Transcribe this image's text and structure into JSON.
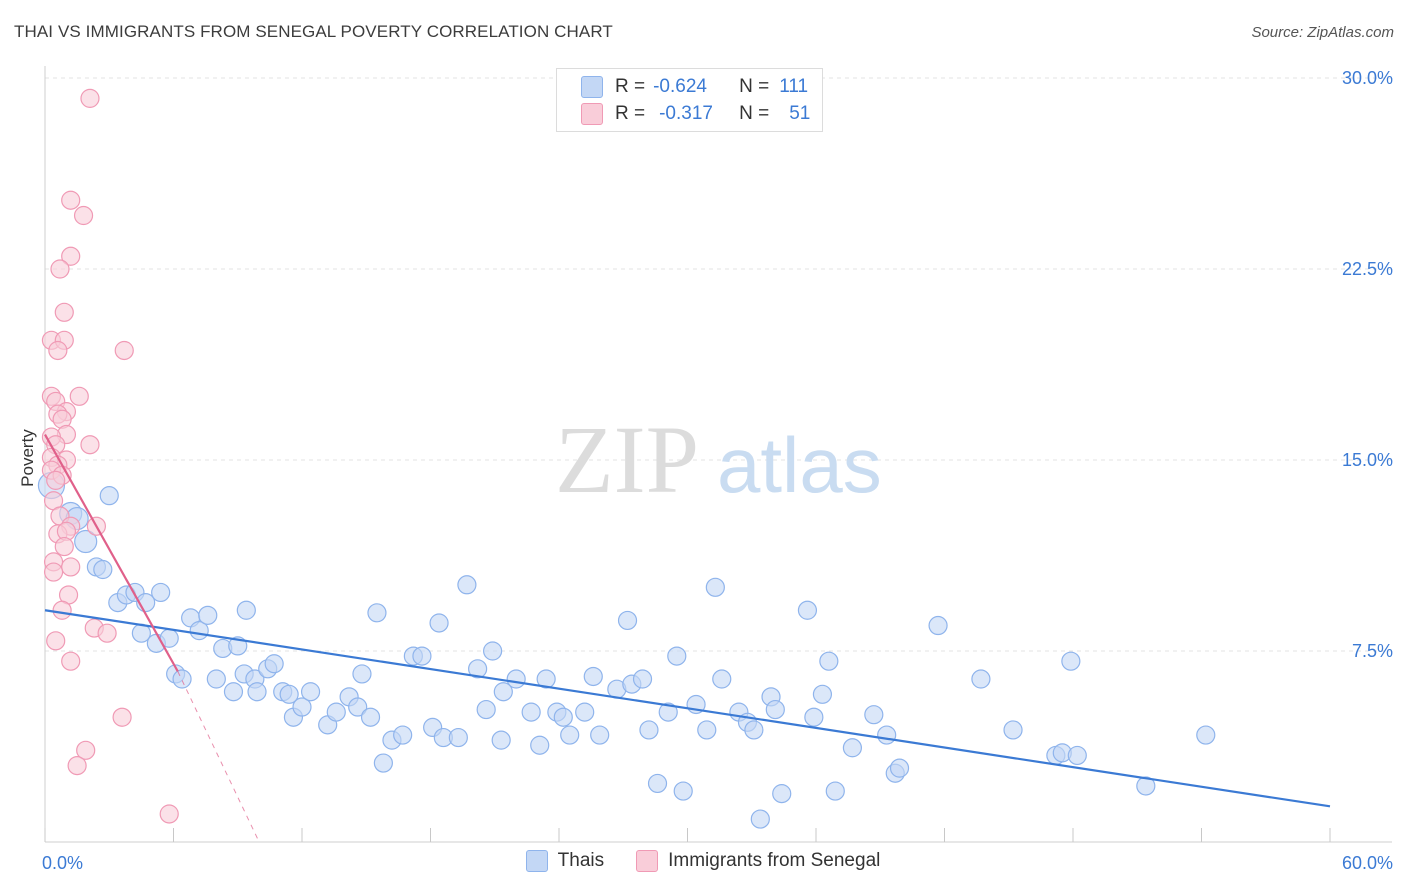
{
  "title": "THAI VS IMMIGRANTS FROM SENEGAL POVERTY CORRELATION CHART",
  "source": "Source: ZipAtlas.com",
  "watermark": {
    "zip": "ZIP",
    "atlas": "atlas"
  },
  "stats": [
    {
      "r_label": "R =",
      "r_value": "-0.624",
      "n_label": "N =",
      "n_value": "111",
      "color": "#8fb4ec",
      "fill": "#c3d7f5"
    },
    {
      "r_label": "R =",
      "r_value": "-0.317",
      "n_label": "N =",
      "n_value": "51",
      "color": "#f09ab5",
      "fill": "#f9cdd9"
    }
  ],
  "legend": [
    {
      "label": "Thais",
      "fill": "#c3d7f5",
      "stroke": "#8fb4ec"
    },
    {
      "label": "Immigrants from Senegal",
      "fill": "#f9cdd9",
      "stroke": "#f09ab5"
    }
  ],
  "chart_data": {
    "type": "scatter",
    "title": "THAI VS IMMIGRANTS FROM SENEGAL POVERTY CORRELATION CHART",
    "xlabel": "",
    "ylabel": "Poverty",
    "xlim": [
      0,
      60
    ],
    "ylim": [
      0,
      30
    ],
    "x_tick_labels": [
      "0.0%",
      "60.0%"
    ],
    "y_ticks": [
      7.5,
      15.0,
      22.5,
      30.0
    ],
    "y_tick_labels": [
      "7.5%",
      "15.0%",
      "22.5%",
      "30.0%"
    ],
    "grid": true,
    "legend_position": "bottom",
    "series": [
      {
        "name": "Thais",
        "color": "#3b7ad4",
        "marker_fill": "#c3d7f5",
        "marker_stroke": "#8fb4ec",
        "trend": {
          "x": [
            0,
            60
          ],
          "y": [
            9.1,
            1.4
          ]
        },
        "points": [
          [
            0.3,
            14.0
          ],
          [
            1.2,
            12.9
          ],
          [
            1.5,
            12.7
          ],
          [
            1.9,
            11.8
          ],
          [
            3.0,
            13.6
          ],
          [
            2.4,
            10.8
          ],
          [
            2.7,
            10.7
          ],
          [
            3.4,
            9.4
          ],
          [
            3.8,
            9.7
          ],
          [
            4.2,
            9.8
          ],
          [
            4.7,
            9.4
          ],
          [
            5.4,
            9.8
          ],
          [
            4.5,
            8.2
          ],
          [
            5.2,
            7.8
          ],
          [
            5.8,
            8.0
          ],
          [
            6.1,
            6.6
          ],
          [
            6.4,
            6.4
          ],
          [
            6.8,
            8.8
          ],
          [
            7.2,
            8.3
          ],
          [
            7.6,
            8.9
          ],
          [
            8.0,
            6.4
          ],
          [
            8.3,
            7.6
          ],
          [
            8.8,
            5.9
          ],
          [
            9.0,
            7.7
          ],
          [
            9.3,
            6.6
          ],
          [
            9.4,
            9.1
          ],
          [
            9.8,
            6.4
          ],
          [
            9.9,
            5.9
          ],
          [
            10.4,
            6.8
          ],
          [
            10.7,
            7.0
          ],
          [
            11.1,
            5.9
          ],
          [
            11.4,
            5.8
          ],
          [
            11.6,
            4.9
          ],
          [
            12.0,
            5.3
          ],
          [
            12.4,
            5.9
          ],
          [
            13.2,
            4.6
          ],
          [
            13.6,
            5.1
          ],
          [
            14.2,
            5.7
          ],
          [
            14.6,
            5.3
          ],
          [
            14.8,
            6.6
          ],
          [
            15.2,
            4.9
          ],
          [
            15.5,
            9.0
          ],
          [
            15.8,
            3.1
          ],
          [
            16.2,
            4.0
          ],
          [
            16.7,
            4.2
          ],
          [
            17.2,
            7.3
          ],
          [
            17.6,
            7.3
          ],
          [
            18.1,
            4.5
          ],
          [
            18.4,
            8.6
          ],
          [
            18.6,
            4.1
          ],
          [
            19.3,
            4.1
          ],
          [
            19.7,
            10.1
          ],
          [
            20.2,
            6.8
          ],
          [
            20.6,
            5.2
          ],
          [
            20.9,
            7.5
          ],
          [
            21.3,
            4.0
          ],
          [
            21.4,
            5.9
          ],
          [
            22.0,
            6.4
          ],
          [
            22.7,
            5.1
          ],
          [
            23.1,
            3.8
          ],
          [
            23.4,
            6.4
          ],
          [
            23.9,
            5.1
          ],
          [
            24.2,
            4.9
          ],
          [
            24.5,
            4.2
          ],
          [
            25.2,
            5.1
          ],
          [
            25.6,
            6.5
          ],
          [
            25.9,
            4.2
          ],
          [
            26.7,
            6.0
          ],
          [
            27.2,
            8.7
          ],
          [
            27.4,
            6.2
          ],
          [
            27.9,
            6.4
          ],
          [
            28.2,
            4.4
          ],
          [
            28.6,
            2.3
          ],
          [
            29.1,
            5.1
          ],
          [
            29.5,
            7.3
          ],
          [
            29.8,
            2.0
          ],
          [
            30.4,
            5.4
          ],
          [
            30.9,
            4.4
          ],
          [
            31.3,
            10.0
          ],
          [
            31.6,
            6.4
          ],
          [
            32.4,
            5.1
          ],
          [
            32.8,
            4.7
          ],
          [
            33.1,
            4.4
          ],
          [
            33.4,
            0.9
          ],
          [
            33.9,
            5.7
          ],
          [
            34.1,
            5.2
          ],
          [
            34.4,
            1.9
          ],
          [
            35.6,
            9.1
          ],
          [
            35.9,
            4.9
          ],
          [
            36.3,
            5.8
          ],
          [
            36.6,
            7.1
          ],
          [
            36.9,
            2.0
          ],
          [
            37.7,
            3.7
          ],
          [
            38.7,
            5.0
          ],
          [
            39.3,
            4.2
          ],
          [
            39.7,
            2.7
          ],
          [
            39.9,
            2.9
          ],
          [
            41.7,
            8.5
          ],
          [
            43.7,
            6.4
          ],
          [
            45.2,
            4.4
          ],
          [
            47.2,
            3.4
          ],
          [
            47.5,
            3.5
          ],
          [
            47.9,
            7.1
          ],
          [
            48.2,
            3.4
          ],
          [
            51.4,
            2.2
          ],
          [
            54.2,
            4.2
          ]
        ]
      },
      {
        "name": "Immigrants from Senegal",
        "color": "#e0608a",
        "marker_fill": "#f9cdd9",
        "marker_stroke": "#f09ab5",
        "trend": {
          "x": [
            0,
            6.2
          ],
          "y": [
            16.0,
            6.7
          ]
        },
        "trend_dashed": {
          "x": [
            6.2,
            10.0
          ],
          "y": [
            6.7,
            0.0
          ]
        },
        "points": [
          [
            2.1,
            29.2
          ],
          [
            1.2,
            25.2
          ],
          [
            1.8,
            24.6
          ],
          [
            1.2,
            23.0
          ],
          [
            0.7,
            22.5
          ],
          [
            0.9,
            20.8
          ],
          [
            0.3,
            19.7
          ],
          [
            0.9,
            19.7
          ],
          [
            0.6,
            19.3
          ],
          [
            3.7,
            19.3
          ],
          [
            0.3,
            17.5
          ],
          [
            0.5,
            17.3
          ],
          [
            1.6,
            17.5
          ],
          [
            1.0,
            16.9
          ],
          [
            0.6,
            16.8
          ],
          [
            0.8,
            16.6
          ],
          [
            1.0,
            16.0
          ],
          [
            0.3,
            15.9
          ],
          [
            0.5,
            15.6
          ],
          [
            2.1,
            15.6
          ],
          [
            0.3,
            15.1
          ],
          [
            1.0,
            15.0
          ],
          [
            0.6,
            14.8
          ],
          [
            0.3,
            14.6
          ],
          [
            0.8,
            14.4
          ],
          [
            0.5,
            14.2
          ],
          [
            0.4,
            13.4
          ],
          [
            0.7,
            12.8
          ],
          [
            1.2,
            12.4
          ],
          [
            2.4,
            12.4
          ],
          [
            0.6,
            12.1
          ],
          [
            1.0,
            12.2
          ],
          [
            0.9,
            11.6
          ],
          [
            0.4,
            11.0
          ],
          [
            1.2,
            10.8
          ],
          [
            0.4,
            10.6
          ],
          [
            1.1,
            9.7
          ],
          [
            0.8,
            9.1
          ],
          [
            2.3,
            8.4
          ],
          [
            2.9,
            8.2
          ],
          [
            0.5,
            7.9
          ],
          [
            1.2,
            7.1
          ],
          [
            3.6,
            4.9
          ],
          [
            1.9,
            3.6
          ],
          [
            1.5,
            3.0
          ],
          [
            5.8,
            1.1
          ]
        ]
      }
    ]
  }
}
